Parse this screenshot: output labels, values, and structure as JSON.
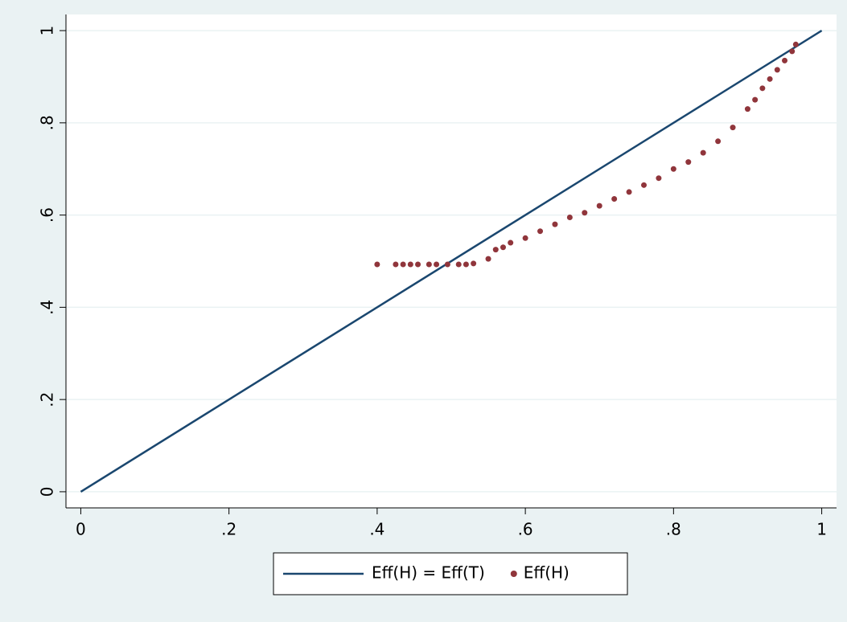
{
  "chart_data": {
    "type": "scatter",
    "xlim": [
      -0.02,
      1.02
    ],
    "ylim": [
      -0.035,
      1.035
    ],
    "xticks": [
      0,
      {
        "value": 0.2,
        "label": ".2"
      },
      {
        "value": 0.4,
        "label": ".4"
      },
      {
        "value": 0.6,
        "label": ".6"
      },
      {
        "value": 0.8,
        "label": ".8"
      },
      1
    ],
    "yticks": [
      0,
      {
        "value": 0.2,
        "label": ".2"
      },
      {
        "value": 0.4,
        "label": ".4"
      },
      {
        "value": 0.6,
        "label": ".6"
      },
      {
        "value": 0.8,
        "label": ".8"
      },
      1
    ],
    "grid": true,
    "legend": "bottom",
    "series": [
      {
        "name": "Eff(H) = Eff(T)",
        "type": "line",
        "color": "#1a476f",
        "x": [
          0,
          1
        ],
        "values": [
          0,
          1
        ]
      },
      {
        "name": "Eff(H)",
        "type": "scatter",
        "color": "#90353b",
        "x": [
          0.4,
          0.425,
          0.435,
          0.445,
          0.455,
          0.47,
          0.48,
          0.495,
          0.51,
          0.52,
          0.53,
          0.55,
          0.56,
          0.57,
          0.58,
          0.6,
          0.62,
          0.64,
          0.66,
          0.68,
          0.7,
          0.72,
          0.74,
          0.76,
          0.78,
          0.8,
          0.82,
          0.84,
          0.86,
          0.88,
          0.9,
          0.91,
          0.92,
          0.93,
          0.94,
          0.95,
          0.96,
          0.965
        ],
        "values": [
          0.493,
          0.493,
          0.493,
          0.493,
          0.493,
          0.493,
          0.493,
          0.493,
          0.493,
          0.493,
          0.495,
          0.505,
          0.525,
          0.53,
          0.54,
          0.55,
          0.565,
          0.58,
          0.595,
          0.605,
          0.62,
          0.635,
          0.65,
          0.665,
          0.68,
          0.7,
          0.715,
          0.735,
          0.76,
          0.79,
          0.83,
          0.85,
          0.875,
          0.895,
          0.915,
          0.935,
          0.955,
          0.97
        ]
      }
    ]
  }
}
